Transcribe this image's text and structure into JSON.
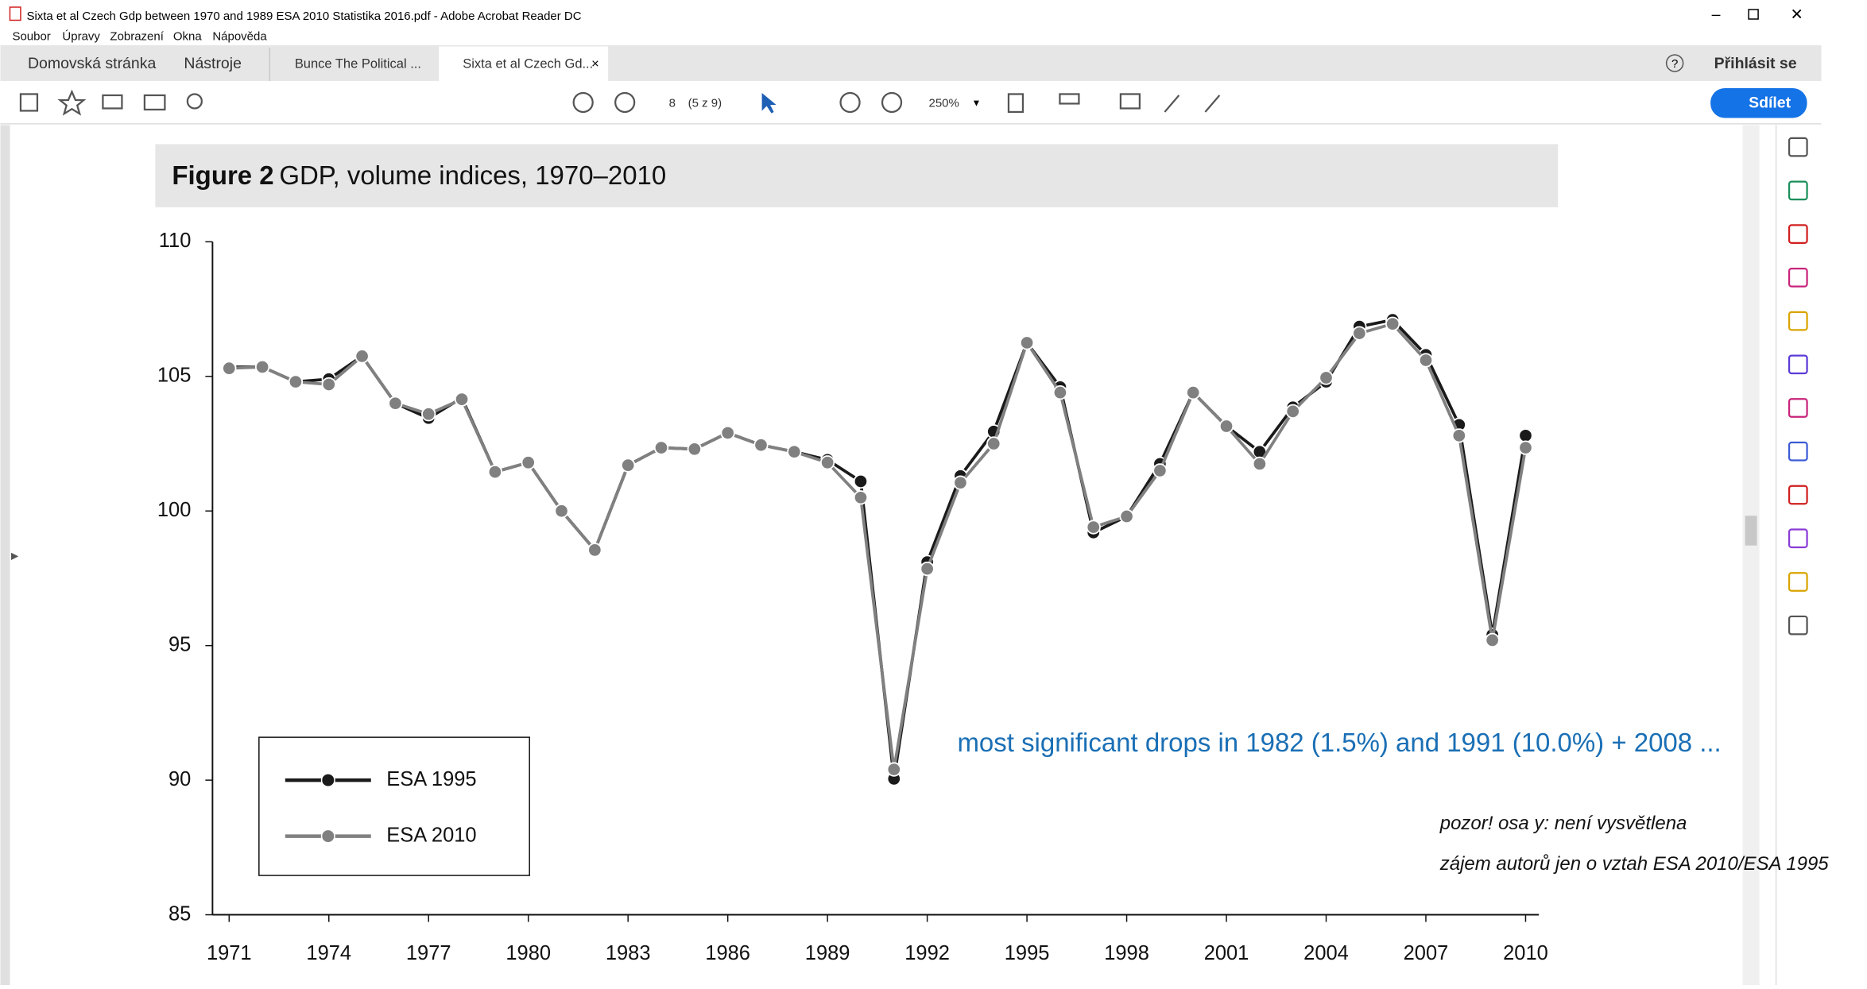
{
  "window": {
    "title": "Sixta et al Czech Gdp between 1970 and 1989 ESA 2010 Statistika 2016.pdf - Adobe Acrobat Reader DC",
    "menu": [
      "Soubor",
      "Úpravy",
      "Zobrazení",
      "Okna",
      "Nápověda"
    ]
  },
  "tabs": {
    "home": "Domovská stránka",
    "tools": "Nástroje",
    "documents": [
      "Bunce The Political ...",
      "Sixta et al Czech Gd..."
    ],
    "sign_in": "Přihlásit se"
  },
  "toolbar": {
    "page": "8",
    "page_count": "(5 z 9)",
    "zoom": "250%",
    "share": "Sdílet"
  },
  "notes": [
    "pozor!  osa y:  není vysvětlena",
    "zájem autorů jen o vztah ESA 2010/ESA 1995"
  ],
  "chart_data": {
    "type": "line",
    "figure_label": "Figure 2",
    "title": "GDP, volume indices, 1970–2010",
    "annotation": "most significant drops in 1982 (1.5%) and 1991 (10.0%) + 2008 ...",
    "x": [
      1971,
      1972,
      1973,
      1974,
      1975,
      1976,
      1977,
      1978,
      1979,
      1980,
      1981,
      1982,
      1983,
      1984,
      1985,
      1986,
      1987,
      1988,
      1989,
      1990,
      1991,
      1992,
      1993,
      1994,
      1995,
      1996,
      1997,
      1998,
      1999,
      2000,
      2001,
      2002,
      2003,
      2004,
      2005,
      2006,
      2007,
      2008,
      2009,
      2010
    ],
    "series": [
      {
        "name": "ESA 1995",
        "color": "#1a1a1a",
        "values": [
          105.35,
          105.35,
          104.8,
          104.9,
          105.75,
          104.0,
          103.45,
          104.2,
          101.45,
          101.8,
          100.0,
          98.55,
          101.7,
          102.35,
          102.3,
          102.9,
          102.45,
          102.2,
          101.9,
          101.1,
          90.05,
          98.1,
          101.3,
          102.95,
          106.25,
          104.6,
          99.2,
          99.8,
          101.75,
          104.4,
          103.15,
          102.2,
          103.85,
          104.8,
          106.85,
          107.1,
          105.8,
          103.2,
          95.4,
          102.8
        ]
      },
      {
        "name": "ESA 2010",
        "color": "#808080",
        "values": [
          105.3,
          105.35,
          104.8,
          104.7,
          105.75,
          104.0,
          103.6,
          104.15,
          101.45,
          101.8,
          100.0,
          98.55,
          101.7,
          102.35,
          102.3,
          102.9,
          102.45,
          102.2,
          101.8,
          100.5,
          90.4,
          97.85,
          101.05,
          102.5,
          106.25,
          104.4,
          99.4,
          99.8,
          101.5,
          104.4,
          103.15,
          101.75,
          103.7,
          104.95,
          106.6,
          106.95,
          105.6,
          102.8,
          95.2,
          102.35
        ]
      }
    ],
    "xlim": [
      1970.5,
      2010.4
    ],
    "xticks": [
      1971,
      1974,
      1977,
      1980,
      1983,
      1986,
      1989,
      1992,
      1995,
      1998,
      2001,
      2004,
      2007,
      2010
    ],
    "ylim": [
      85,
      110
    ],
    "yticks": [
      85,
      90,
      95,
      100,
      105,
      110
    ],
    "legend": "lower left"
  }
}
